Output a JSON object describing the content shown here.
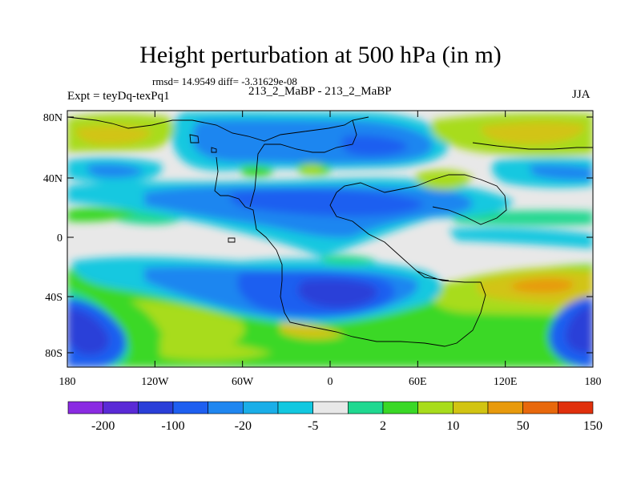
{
  "title": "Height perturbation at 500 hPa (in m)",
  "stats": "rmsd= 14.9549 diff= -3.31629e-08",
  "experiment": "Expt = teyDq-texPq1",
  "case": "213_2_MaBP - 213_2_MaBP",
  "season": "JJA",
  "lat_ticks": [
    "80N",
    "40N",
    "0",
    "40S",
    "80S"
  ],
  "lon_ticks": [
    "180",
    "120W",
    "60W",
    "0",
    "60E",
    "120E",
    "180"
  ],
  "colorbar": {
    "colors": [
      "#8a2be2",
      "#5a2ad6",
      "#2a3fd8",
      "#1e5ff0",
      "#1f86f0",
      "#1aaee8",
      "#12c8e0",
      "#e8e8e8",
      "#20d890",
      "#3ad826",
      "#a8dc1c",
      "#d2c412",
      "#e89a0c",
      "#e8680c",
      "#e0300c"
    ],
    "labels": [
      "-200",
      "-100",
      "-20",
      "-5",
      "2",
      "10",
      "50",
      "150"
    ]
  },
  "palette": {
    "neutral": "#e8e8e8",
    "blue_dark": "#2a3fd8",
    "blue": "#1e5ff0",
    "blue_mid": "#1f86f0",
    "blue_light": "#12c8e0",
    "teal": "#20d890",
    "green": "#3ad826",
    "yellowgreen": "#a8dc1c",
    "yellow": "#d2c412",
    "orange": "#e89a0c"
  }
}
